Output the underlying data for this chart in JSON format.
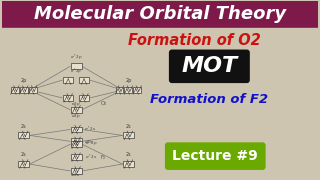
{
  "bg_color": "#cdc5b0",
  "title_bar_color": "#7d1a4a",
  "title_text": "Molecular Orbital Theory",
  "title_text_color": "#ffffff",
  "formation_o2_text": "Formation of O2",
  "formation_o2_color": "#cc1111",
  "mot_box_color": "#111111",
  "mot_text": "MOT",
  "mot_text_color": "#ffffff",
  "formation_f2_text": "Formation of F2",
  "formation_f2_color": "#1111cc",
  "lecture_box_color": "#6aaa00",
  "lecture_text": "Lecture #9",
  "lecture_text_color": "#ffffff",
  "diagram_line_color": "#777777",
  "diagram_box_fill": "#e8e0cc",
  "diagram_box_border": "#555555"
}
